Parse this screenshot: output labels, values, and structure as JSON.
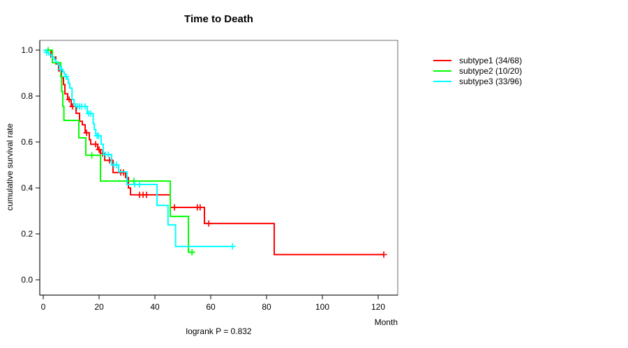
{
  "chart_data": {
    "type": "line",
    "subtype": "kaplan-meier-step",
    "title": "Time to Death",
    "xlabel": "Month",
    "ylabel": "cumulative survival rate",
    "annotation": "logrank P = 0.832",
    "xlim": [
      0,
      127
    ],
    "ylim": [
      0,
      1.04
    ],
    "x_ticks": [
      0,
      20,
      40,
      60,
      80,
      100,
      120
    ],
    "y_ticks": [
      0.0,
      0.2,
      0.4,
      0.6,
      0.8,
      1.0
    ],
    "y_tick_labels": [
      "0.0",
      "0.2",
      "0.4",
      "0.6",
      "0.8",
      "1.0"
    ],
    "grid": false,
    "legend_position": "right-outside",
    "series": [
      {
        "name": "subtype1",
        "label": "subtype1 (34/68)",
        "color": "#FF0000",
        "start": [
          0,
          1.0
        ],
        "steps": [
          [
            2.75,
            0.97
          ],
          [
            4.5,
            0.94
          ],
          [
            5.5,
            0.91
          ],
          [
            6.5,
            0.88
          ],
          [
            7.25,
            0.85
          ],
          [
            7.75,
            0.81
          ],
          [
            8.75,
            0.785
          ],
          [
            10,
            0.755
          ],
          [
            11.75,
            0.725
          ],
          [
            13,
            0.69
          ],
          [
            14,
            0.675
          ],
          [
            15,
            0.64
          ],
          [
            16.5,
            0.61
          ],
          [
            17,
            0.59
          ],
          [
            19.5,
            0.567
          ],
          [
            20.5,
            0.55
          ],
          [
            22,
            0.52
          ],
          [
            25,
            0.467
          ],
          [
            29.5,
            0.445
          ],
          [
            30.5,
            0.4
          ],
          [
            31.25,
            0.37
          ],
          [
            45.5,
            0.315
          ],
          [
            57.75,
            0.245
          ],
          [
            82.75,
            0.11
          ]
        ],
        "end_time": 122,
        "censors": [
          [
            9.3,
            0.785
          ],
          [
            10.5,
            0.755
          ],
          [
            15.5,
            0.64
          ],
          [
            18.75,
            0.59
          ],
          [
            20,
            0.567
          ],
          [
            21.25,
            0.55
          ],
          [
            23.75,
            0.52
          ],
          [
            27.75,
            0.467
          ],
          [
            28.75,
            0.467
          ],
          [
            34.5,
            0.37
          ],
          [
            35.75,
            0.37
          ],
          [
            37,
            0.37
          ],
          [
            47,
            0.315
          ],
          [
            55.2,
            0.315
          ],
          [
            56.2,
            0.315
          ],
          [
            59.3,
            0.245
          ],
          [
            122,
            0.11
          ]
        ]
      },
      {
        "name": "subtype2",
        "label": "subtype2 (10/20)",
        "color": "#00FF00",
        "start": [
          0,
          1.0
        ],
        "steps": [
          [
            3.25,
            0.945
          ],
          [
            6.25,
            0.885
          ],
          [
            6.6,
            0.82
          ],
          [
            7,
            0.755
          ],
          [
            7.4,
            0.694
          ],
          [
            12.75,
            0.618
          ],
          [
            15.25,
            0.542
          ],
          [
            20.5,
            0.43
          ],
          [
            45.5,
            0.276
          ],
          [
            52,
            0.12
          ]
        ],
        "end_time": 54,
        "censors": [
          [
            1.75,
            1.0
          ],
          [
            17.4,
            0.542
          ],
          [
            32.5,
            0.43
          ],
          [
            53.3,
            0.12
          ]
        ]
      },
      {
        "name": "subtype3",
        "label": "subtype3 (33/96)",
        "color": "#00FFFF",
        "start": [
          0,
          1.0
        ],
        "steps": [
          [
            1,
            0.99
          ],
          [
            2,
            0.98
          ],
          [
            3,
            0.969
          ],
          [
            4,
            0.958
          ],
          [
            4.5,
            0.948
          ],
          [
            5.2,
            0.937
          ],
          [
            5.8,
            0.927
          ],
          [
            6.5,
            0.916
          ],
          [
            7,
            0.906
          ],
          [
            7.5,
            0.895
          ],
          [
            8,
            0.885
          ],
          [
            8.5,
            0.874
          ],
          [
            9,
            0.855
          ],
          [
            9.5,
            0.835
          ],
          [
            10.3,
            0.785
          ],
          [
            11,
            0.765
          ],
          [
            11.5,
            0.755
          ],
          [
            15.75,
            0.724
          ],
          [
            17.9,
            0.68
          ],
          [
            18.3,
            0.655
          ],
          [
            18.8,
            0.627
          ],
          [
            20.75,
            0.59
          ],
          [
            21.5,
            0.545
          ],
          [
            24.5,
            0.5
          ],
          [
            27,
            0.47
          ],
          [
            30,
            0.415
          ],
          [
            40.75,
            0.324
          ],
          [
            44.7,
            0.239
          ],
          [
            47.4,
            0.145
          ]
        ],
        "end_time": 67.8,
        "censors": [
          [
            1.25,
            0.99
          ],
          [
            6.2,
            0.916
          ],
          [
            8.2,
            0.885
          ],
          [
            12.2,
            0.755
          ],
          [
            13,
            0.755
          ],
          [
            13.8,
            0.755
          ],
          [
            15,
            0.755
          ],
          [
            16.3,
            0.724
          ],
          [
            17,
            0.724
          ],
          [
            19.3,
            0.627
          ],
          [
            19.8,
            0.627
          ],
          [
            22.3,
            0.545
          ],
          [
            23.3,
            0.545
          ],
          [
            25.3,
            0.5
          ],
          [
            26.3,
            0.5
          ],
          [
            32.75,
            0.415
          ],
          [
            34.5,
            0.415
          ],
          [
            67.8,
            0.145
          ]
        ]
      }
    ]
  }
}
